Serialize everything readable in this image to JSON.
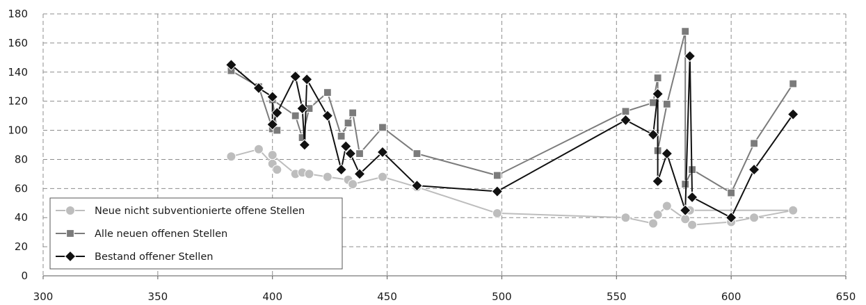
{
  "chart_data": {
    "type": "scatter",
    "title": "",
    "xlabel": "",
    "ylabel": "",
    "xlim": [
      300,
      650
    ],
    "ylim": [
      0,
      180
    ],
    "x_ticks": [
      300,
      350,
      400,
      450,
      500,
      550,
      600,
      650
    ],
    "y_ticks": [
      0,
      20,
      40,
      60,
      80,
      100,
      120,
      140,
      160,
      180
    ],
    "grid": true,
    "legend_position": "bottom-left",
    "series": [
      {
        "name": "Neue nicht subventionierte offene Stellen",
        "color": "#bdbdbd",
        "marker": "circle",
        "points": [
          [
            382,
            82
          ],
          [
            394,
            87
          ],
          [
            400,
            77
          ],
          [
            402,
            73
          ],
          [
            400,
            83
          ],
          [
            410,
            70
          ],
          [
            413,
            71
          ],
          [
            416,
            70
          ],
          [
            424,
            68
          ],
          [
            433,
            66
          ],
          [
            435,
            63
          ],
          [
            448,
            68
          ],
          [
            463,
            61
          ],
          [
            498,
            43
          ],
          [
            554,
            40
          ],
          [
            566,
            36
          ],
          [
            568,
            42
          ],
          [
            572,
            48
          ],
          [
            580,
            39
          ],
          [
            583,
            35
          ],
          [
            600,
            37
          ],
          [
            610,
            40
          ],
          [
            627,
            45
          ],
          [
            582,
            45
          ]
        ]
      },
      {
        "name": "Alle neuen offenen Stellen",
        "color": "#7b7b7b",
        "marker": "square",
        "points": [
          [
            382,
            141
          ],
          [
            394,
            130
          ],
          [
            400,
            101
          ],
          [
            402,
            100
          ],
          [
            400,
            121
          ],
          [
            410,
            110
          ],
          [
            413,
            95
          ],
          [
            416,
            115
          ],
          [
            424,
            126
          ],
          [
            430,
            96
          ],
          [
            433,
            105
          ],
          [
            435,
            112
          ],
          [
            438,
            84
          ],
          [
            448,
            102
          ],
          [
            463,
            84
          ],
          [
            498,
            69
          ],
          [
            554,
            113
          ],
          [
            566,
            119
          ],
          [
            568,
            136
          ],
          [
            568,
            86
          ],
          [
            572,
            118
          ],
          [
            580,
            168
          ],
          [
            580,
            63
          ],
          [
            583,
            73
          ],
          [
            600,
            57
          ],
          [
            610,
            91
          ],
          [
            627,
            132
          ]
        ]
      },
      {
        "name": "Bestand offener Stellen",
        "color": "#111111",
        "marker": "diamond",
        "points": [
          [
            382,
            145
          ],
          [
            394,
            129
          ],
          [
            400,
            123
          ],
          [
            400,
            104
          ],
          [
            402,
            112
          ],
          [
            410,
            137
          ],
          [
            413,
            115
          ],
          [
            414,
            90
          ],
          [
            415,
            135
          ],
          [
            424,
            110
          ],
          [
            430,
            73
          ],
          [
            432,
            89
          ],
          [
            434,
            84
          ],
          [
            438,
            70
          ],
          [
            448,
            85
          ],
          [
            463,
            62
          ],
          [
            498,
            58
          ],
          [
            554,
            107
          ],
          [
            566,
            97
          ],
          [
            568,
            125
          ],
          [
            568,
            65
          ],
          [
            572,
            84
          ],
          [
            580,
            45
          ],
          [
            582,
            151
          ],
          [
            583,
            54
          ],
          [
            600,
            40
          ],
          [
            610,
            73
          ],
          [
            627,
            111
          ]
        ]
      }
    ]
  }
}
